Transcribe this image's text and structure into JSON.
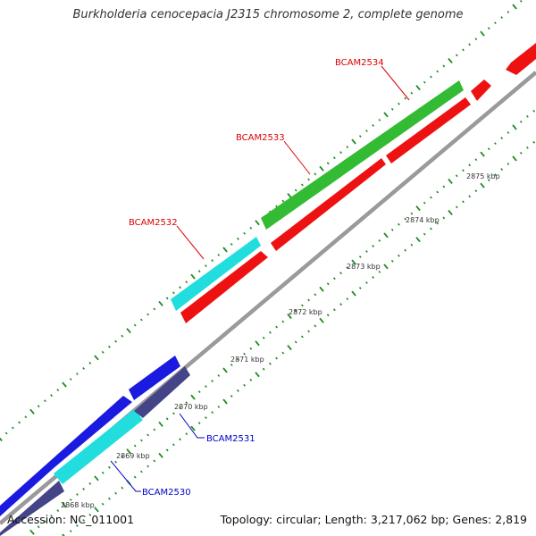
{
  "title": "Burkholderia cenocepacia J2315 chromosome 2, complete genome",
  "footer": {
    "accession": "Accession: NC_011001",
    "summary": "Topology: circular; Length: 3,217,062 bp; Genes: 2,819"
  },
  "colors": {
    "backbone": "#9a9a9a",
    "ticks": "#1f8a1f",
    "tick_label": "#333333",
    "label_red": "#dd0000",
    "label_blue": "#0000cc"
  },
  "axis_labels": [
    "2868 kbp",
    "2869 kbp",
    "2870 kbp",
    "2871 kbp",
    "2872 kbp",
    "2873 kbp",
    "2874 kbp",
    "2875 kbp"
  ],
  "gene_labels": [
    {
      "name": "BCAM2534",
      "color": "#dd0000"
    },
    {
      "name": "BCAM2533",
      "color": "#dd0000"
    },
    {
      "name": "BCAM2532",
      "color": "#dd0000"
    },
    {
      "name": "BCAM2531",
      "color": "#0000cc"
    },
    {
      "name": "BCAM2530",
      "color": "#0000cc"
    }
  ],
  "features": [
    {
      "id": "red-a",
      "color": "#ee1111"
    },
    {
      "id": "red-b",
      "color": "#ee1111"
    },
    {
      "id": "red-c",
      "color": "#ee1111"
    },
    {
      "id": "red-d",
      "color": "#ee1111"
    },
    {
      "id": "red-e",
      "color": "#ee1111"
    },
    {
      "id": "green",
      "color": "#33bb33"
    },
    {
      "id": "cyan-top",
      "color": "#22dddd"
    },
    {
      "id": "blue-1",
      "color": "#1a1ae0"
    },
    {
      "id": "blue-2",
      "color": "#1a1ae0"
    },
    {
      "id": "cyan-bottom",
      "color": "#22dddd"
    },
    {
      "id": "navy-1",
      "color": "#444488"
    },
    {
      "id": "navy-2",
      "color": "#444488"
    }
  ]
}
